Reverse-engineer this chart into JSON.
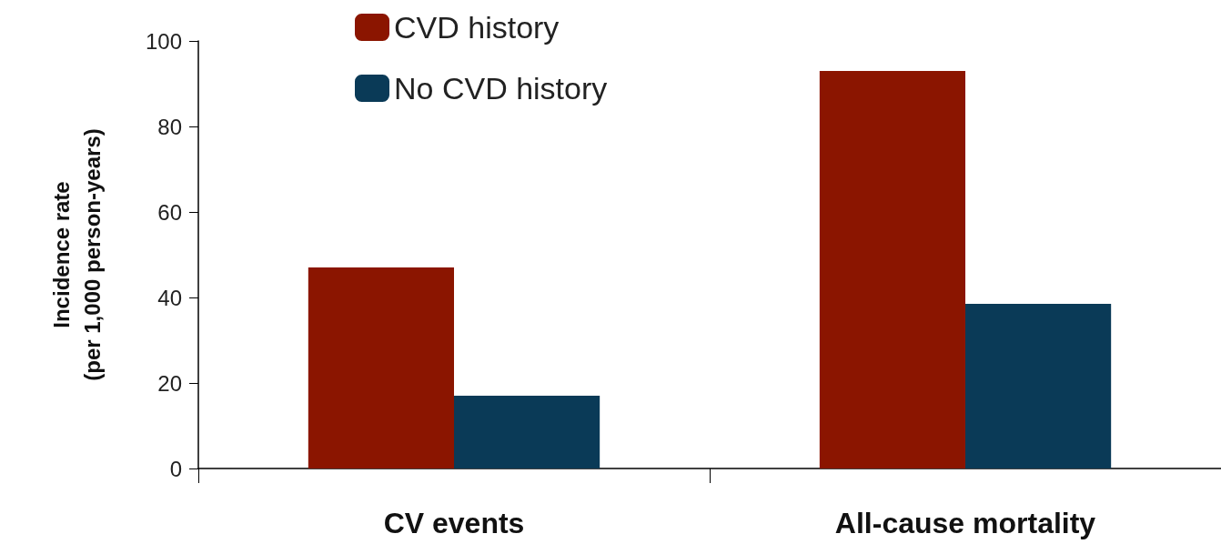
{
  "chart_data": {
    "type": "bar",
    "ylabel": "Incidence rate\n(per 1,000 person-years)",
    "categories": [
      "CV events",
      "All-cause mortality"
    ],
    "series": [
      {
        "name": "CVD history",
        "color": "#8b1500",
        "values": [
          47,
          93
        ]
      },
      {
        "name": "No CVD history",
        "color": "#0a3a57",
        "values": [
          17,
          38.5
        ]
      }
    ],
    "ylim": [
      0,
      100
    ],
    "yticks": [
      0,
      20,
      40,
      60,
      80,
      100
    ],
    "grid": false,
    "legend": "top left"
  }
}
